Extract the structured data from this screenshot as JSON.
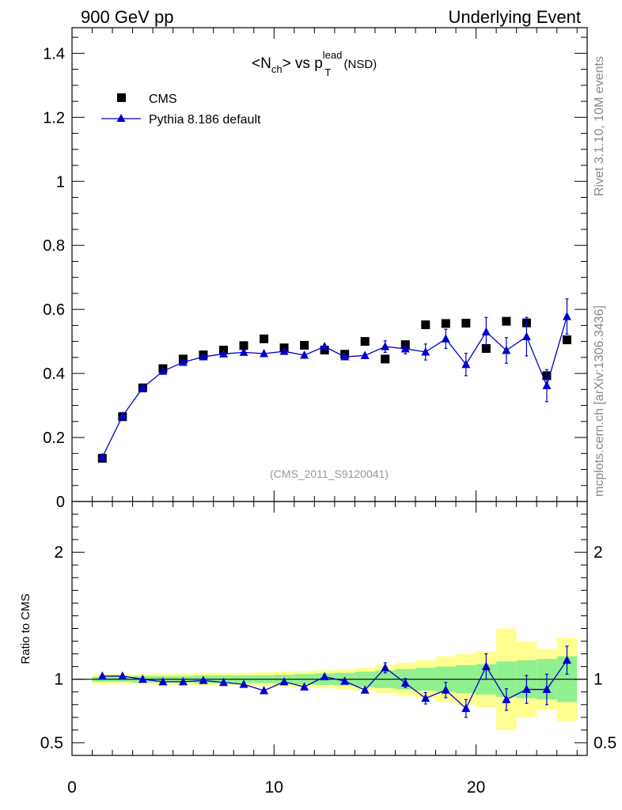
{
  "header": {
    "left": "900 GeV pp",
    "right": "Underlying Event"
  },
  "side": {
    "rivet": "Rivet 3.1.10,  10M events",
    "mcplots": "mcplots.cern.ch [arXiv:1306.3436]"
  },
  "plot_title": {
    "part1": "<N",
    "sub1": "ch",
    "part2": "> vs p",
    "sup": "lead",
    "sub2": "T",
    "part3": " (NSD)"
  },
  "analysis_label": "(CMS_2011_S9120041)",
  "colors": {
    "mc": "#0000cc",
    "data": "#000000",
    "band_inner": "#90f090",
    "band_outer": "#ffff90"
  },
  "chart_data": {
    "type": "scatter",
    "x": [
      1.5,
      2.5,
      3.5,
      4.5,
      5.5,
      6.5,
      7.5,
      8.5,
      9.5,
      10.5,
      11.5,
      12.5,
      13.5,
      14.5,
      15.5,
      16.5,
      17.5,
      18.5,
      19.5,
      20.5,
      21.5,
      22.5,
      23.5,
      24.5
    ],
    "bin_edges": [
      1,
      2,
      3,
      4,
      5,
      6,
      7,
      8,
      9,
      10,
      11,
      12,
      13,
      14,
      15,
      16,
      17,
      18,
      19,
      20,
      21,
      22,
      23,
      24,
      25
    ],
    "xlim": [
      0,
      25.5
    ],
    "x_ticks": [
      "0",
      "10",
      "20"
    ],
    "main": {
      "ylim": [
        0,
        1.48
      ],
      "y_ticks": [
        "0",
        "0.2",
        "0.4",
        "0.6",
        "0.8",
        "1",
        "1.2",
        "1.4"
      ],
      "legend": {
        "position": "top-left",
        "entries": [
          "CMS",
          "Pythia 8.186 default"
        ]
      },
      "series": [
        {
          "name": "CMS",
          "values": [
            0.135,
            0.265,
            0.355,
            0.415,
            0.445,
            0.458,
            0.473,
            0.487,
            0.508,
            0.48,
            0.488,
            0.473,
            0.46,
            0.5,
            0.445,
            0.49,
            0.552,
            0.556,
            0.557,
            0.478,
            0.563,
            0.558,
            0.393,
            0.505
          ]
        },
        {
          "name": "Pythia 8.186 default",
          "values": [
            0.138,
            0.267,
            0.355,
            0.407,
            0.435,
            0.452,
            0.461,
            0.466,
            0.462,
            0.469,
            0.457,
            0.484,
            0.452,
            0.456,
            0.484,
            0.477,
            0.467,
            0.508,
            0.428,
            0.53,
            0.472,
            0.515,
            0.362,
            0.578
          ],
          "errors": [
            0,
            0,
            0,
            0,
            0,
            0,
            0,
            0,
            0,
            0,
            0,
            0,
            0,
            0,
            0.018,
            0.016,
            0.025,
            0.03,
            0.035,
            0.045,
            0.04,
            0.06,
            0.05,
            0.055
          ]
        }
      ]
    },
    "ratio": {
      "ylabel": "Ratio to CMS",
      "ylim": [
        0.4,
        2.4
      ],
      "y_ticks": [
        "0.5",
        "1",
        "2"
      ],
      "mc_values": [
        1.025,
        1.025,
        1.0,
        0.98,
        0.98,
        0.99,
        0.975,
        0.96,
        0.91,
        0.98,
        0.94,
        1.02,
        0.985,
        0.915,
        1.09,
        0.97,
        0.85,
        0.915,
        0.77,
        1.1,
        0.84,
        0.92,
        0.92,
        1.15
      ],
      "mc_errors": [
        0,
        0,
        0,
        0,
        0,
        0,
        0,
        0,
        0,
        0,
        0,
        0,
        0,
        0,
        0.04,
        0.035,
        0.045,
        0.06,
        0.07,
        0.1,
        0.085,
        0.11,
        0.12,
        0.11
      ],
      "band_inner_halfwidth": [
        0.02,
        0.02,
        0.025,
        0.025,
        0.025,
        0.03,
        0.03,
        0.03,
        0.03,
        0.035,
        0.04,
        0.045,
        0.05,
        0.06,
        0.07,
        0.08,
        0.09,
        0.1,
        0.11,
        0.12,
        0.14,
        0.15,
        0.16,
        0.18
      ],
      "band_outer_halfwidth": [
        0.04,
        0.04,
        0.04,
        0.045,
        0.045,
        0.05,
        0.05,
        0.05,
        0.055,
        0.06,
        0.065,
        0.07,
        0.08,
        0.09,
        0.11,
        0.13,
        0.15,
        0.18,
        0.2,
        0.22,
        0.4,
        0.3,
        0.24,
        0.33
      ]
    }
  }
}
